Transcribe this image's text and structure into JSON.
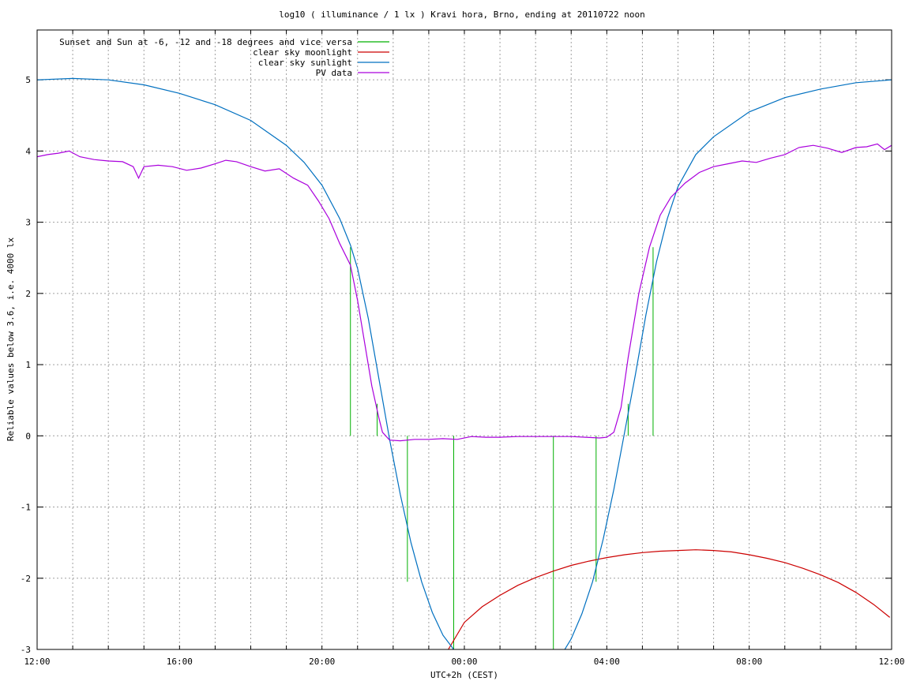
{
  "chart_data": {
    "type": "line",
    "title": "log10 ( illuminance / 1 lx ) Kravi hora, Brno, ending at 20110722 noon",
    "xlabel": "UTC+2h (CEST)",
    "ylabel": "Reliable values below 3.6, i.e. 4000 lx",
    "x_unit": "hours",
    "xlim": [
      12,
      36
    ],
    "ylim": [
      -3,
      5.7
    ],
    "x_ticks": [
      {
        "value": 12,
        "label": "12:00"
      },
      {
        "value": 16,
        "label": "16:00"
      },
      {
        "value": 20,
        "label": "20:00"
      },
      {
        "value": 24,
        "label": "00:00"
      },
      {
        "value": 28,
        "label": "04:00"
      },
      {
        "value": 32,
        "label": "08:00"
      },
      {
        "value": 36,
        "label": "12:00"
      }
    ],
    "y_ticks": [
      -3,
      -2,
      -1,
      0,
      1,
      2,
      3,
      4,
      5
    ],
    "grid": true,
    "legend_position": "top-left",
    "series": [
      {
        "name": "Sunset and Sun at -6, -12 and -18 degrees and vice versa",
        "color": "#00b000",
        "style": "impulses",
        "x": [
          20.8,
          21.55,
          22.4,
          23.7,
          26.5,
          27.7,
          28.6,
          29.3
        ],
        "y": [
          2.65,
          0.45,
          -2.05,
          -3.0,
          -3.0,
          -2.05,
          0.45,
          2.65
        ]
      },
      {
        "name": "clear sky moonlight",
        "color": "#cc0000",
        "x": [
          23.55,
          24.0,
          24.5,
          25.0,
          25.5,
          26.0,
          26.5,
          27.0,
          27.5,
          28.0,
          28.5,
          29.0,
          29.5,
          30.0,
          30.5,
          31.0,
          31.5,
          32.0,
          32.5,
          33.0,
          33.5,
          34.0,
          34.5,
          35.0,
          35.5,
          35.95
        ],
        "y": [
          -3.0,
          -2.62,
          -2.4,
          -2.24,
          -2.1,
          -1.99,
          -1.9,
          -1.82,
          -1.76,
          -1.71,
          -1.67,
          -1.64,
          -1.62,
          -1.61,
          -1.6,
          -1.61,
          -1.63,
          -1.67,
          -1.72,
          -1.78,
          -1.86,
          -1.95,
          -2.06,
          -2.2,
          -2.37,
          -2.55
        ]
      },
      {
        "name": "clear sky sunlight",
        "color": "#0070c0",
        "x": [
          12.0,
          13.0,
          14.0,
          15.0,
          16.0,
          17.0,
          18.0,
          19.0,
          19.5,
          20.0,
          20.5,
          20.8,
          21.0,
          21.3,
          21.6,
          21.9,
          22.2,
          22.5,
          22.8,
          23.1,
          23.4,
          23.7,
          23.9,
          26.7,
          27.0,
          27.3,
          27.6,
          27.9,
          28.2,
          28.5,
          28.8,
          29.1,
          29.4,
          29.7,
          30.0,
          30.5,
          31.0,
          32.0,
          33.0,
          34.0,
          35.0,
          36.0
        ],
        "y": [
          5.0,
          5.02,
          5.0,
          4.93,
          4.81,
          4.65,
          4.43,
          4.08,
          3.84,
          3.52,
          3.05,
          2.68,
          2.35,
          1.65,
          0.8,
          -0.05,
          -0.82,
          -1.5,
          -2.05,
          -2.48,
          -2.8,
          -3.0,
          -3.1,
          -3.1,
          -2.85,
          -2.5,
          -2.05,
          -1.45,
          -0.75,
          0.05,
          0.85,
          1.7,
          2.45,
          3.05,
          3.5,
          3.95,
          4.2,
          4.55,
          4.75,
          4.87,
          4.96,
          5.0
        ]
      },
      {
        "name": "PV data",
        "color": "#aa00dd",
        "x": [
          12.0,
          12.3,
          12.6,
          12.9,
          13.2,
          13.6,
          14.0,
          14.4,
          14.7,
          14.85,
          15.0,
          15.4,
          15.8,
          16.2,
          16.6,
          17.0,
          17.3,
          17.6,
          18.0,
          18.4,
          18.8,
          19.2,
          19.6,
          19.9,
          20.2,
          20.5,
          20.8,
          21.0,
          21.2,
          21.4,
          21.6,
          21.7,
          21.9,
          22.2,
          22.6,
          23.0,
          23.4,
          23.8,
          24.2,
          24.6,
          25.0,
          25.5,
          26.0,
          26.5,
          27.0,
          27.4,
          27.8,
          28.0,
          28.2,
          28.4,
          28.6,
          28.9,
          29.2,
          29.5,
          29.8,
          30.2,
          30.6,
          31.0,
          31.4,
          31.8,
          32.2,
          32.6,
          33.0,
          33.4,
          33.8,
          34.2,
          34.6,
          35.0,
          35.3,
          35.6,
          35.8,
          36.0
        ],
        "y": [
          3.92,
          3.95,
          3.97,
          4.0,
          3.92,
          3.88,
          3.86,
          3.85,
          3.78,
          3.62,
          3.78,
          3.8,
          3.78,
          3.73,
          3.76,
          3.82,
          3.87,
          3.85,
          3.78,
          3.72,
          3.75,
          3.62,
          3.52,
          3.3,
          3.05,
          2.7,
          2.4,
          1.9,
          1.3,
          0.7,
          0.25,
          0.05,
          -0.06,
          -0.07,
          -0.05,
          -0.05,
          -0.04,
          -0.05,
          -0.01,
          -0.02,
          -0.02,
          -0.01,
          -0.01,
          -0.01,
          -0.01,
          -0.02,
          -0.03,
          -0.02,
          0.05,
          0.4,
          1.1,
          2.0,
          2.65,
          3.1,
          3.35,
          3.55,
          3.7,
          3.78,
          3.82,
          3.86,
          3.84,
          3.9,
          3.95,
          4.05,
          4.08,
          4.04,
          3.98,
          4.05,
          4.06,
          4.1,
          4.02,
          4.08
        ]
      }
    ]
  }
}
